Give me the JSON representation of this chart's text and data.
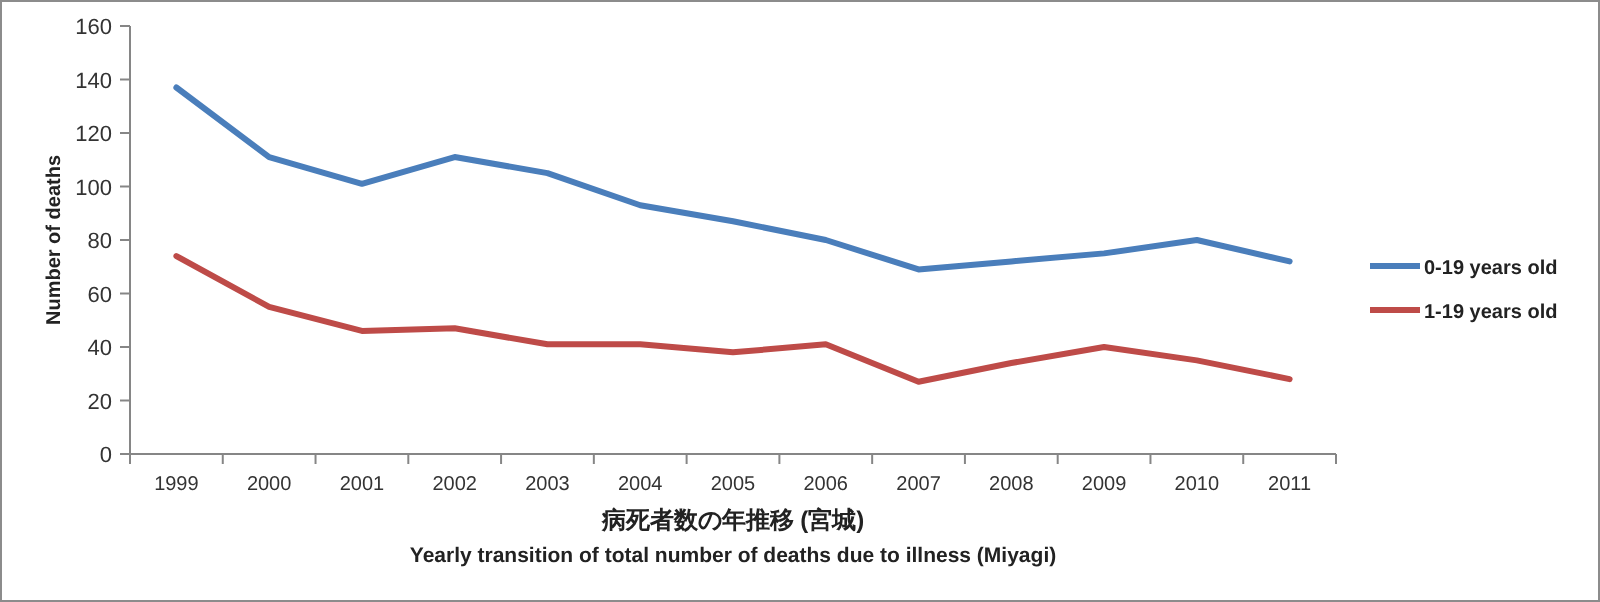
{
  "chart_data": {
    "type": "line",
    "ylabel": "Number of deaths",
    "xlabel": "病死者数の年推移 (宮城)",
    "annotations": [
      "Yearly transition of total number of deaths due to illness (Miyagi)"
    ],
    "categories": [
      "1999",
      "2000",
      "2001",
      "2002",
      "2003",
      "2004",
      "2005",
      "2006",
      "2007",
      "2008",
      "2009",
      "2010",
      "2011"
    ],
    "ylim": [
      0,
      160
    ],
    "yticks": [
      0,
      20,
      40,
      60,
      80,
      100,
      120,
      140,
      160
    ],
    "grid": false,
    "legend": "right",
    "marker": "none",
    "line_style": "solid",
    "series": [
      {
        "name": "0-19 years old",
        "color": "#4a7ebb",
        "values": [
          137,
          111,
          101,
          111,
          105,
          93,
          87,
          80,
          69,
          72,
          75,
          80,
          72
        ]
      },
      {
        "name": "1-19 years old",
        "color": "#be4b48",
        "values": [
          74,
          55,
          46,
          47,
          41,
          41,
          38,
          41,
          27,
          34,
          40,
          35,
          28
        ]
      }
    ]
  }
}
